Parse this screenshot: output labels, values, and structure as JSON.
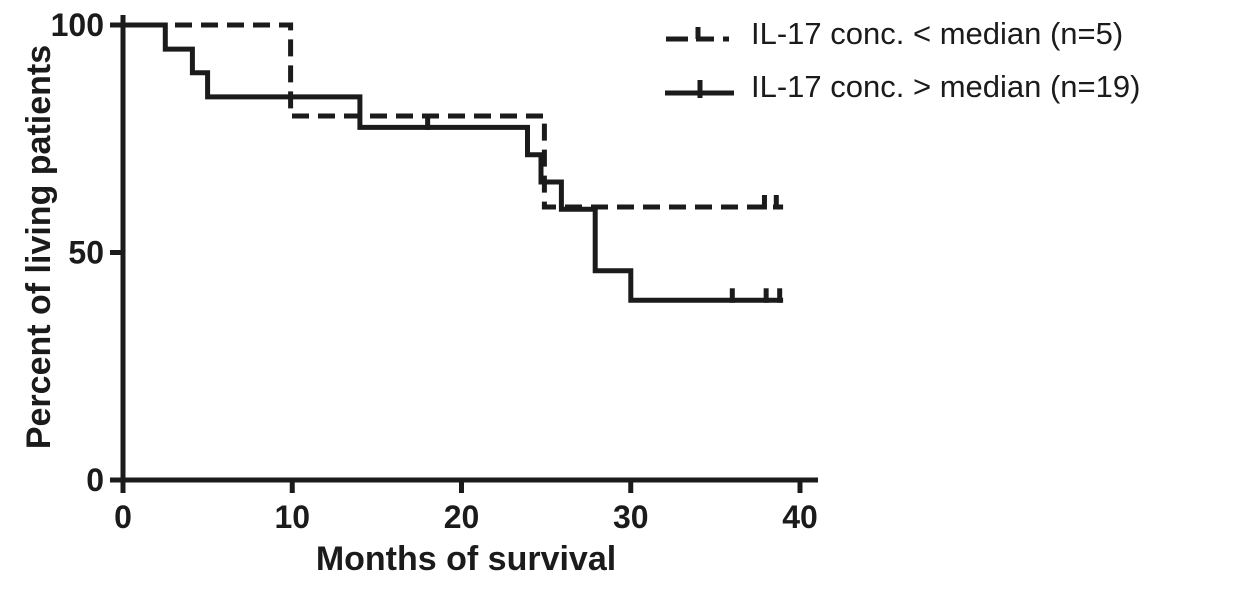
{
  "chart_data": {
    "type": "line",
    "subtype": "kaplan-meier-step",
    "title": "",
    "xlabel": "Months of survival",
    "ylabel": "Percent of living patients",
    "xlim": [
      0,
      40
    ],
    "ylim": [
      0,
      100
    ],
    "x_ticks": [
      0,
      10,
      20,
      30,
      40
    ],
    "y_ticks": [
      0,
      50,
      100
    ],
    "grid": false,
    "legend_position": "top-right",
    "line_color": "#1b1b1b",
    "series": [
      {
        "name": "IL-17 conc. < median (n=5)",
        "style": "dashed",
        "n": 5,
        "steps": [
          [
            0,
            100
          ],
          [
            9.9,
            100
          ],
          [
            9.9,
            80
          ],
          [
            24.9,
            80
          ],
          [
            24.9,
            60
          ],
          [
            39,
            60
          ]
        ],
        "censor_marks": [
          [
            37.9,
            60
          ],
          [
            38.6,
            60
          ]
        ]
      },
      {
        "name": "IL-17 conc. > median (n=19)",
        "style": "solid",
        "n": 19,
        "steps": [
          [
            0,
            100
          ],
          [
            2.5,
            100
          ],
          [
            2.5,
            94.7
          ],
          [
            4.1,
            94.7
          ],
          [
            4.1,
            89.5
          ],
          [
            5,
            89.5
          ],
          [
            5,
            84.2
          ],
          [
            14,
            84.2
          ],
          [
            14,
            77.5
          ],
          [
            23.9,
            77.5
          ],
          [
            23.9,
            71.5
          ],
          [
            24.7,
            71.5
          ],
          [
            24.7,
            65.5
          ],
          [
            25.9,
            65.5
          ],
          [
            25.9,
            59.5
          ],
          [
            27.9,
            59.5
          ],
          [
            27.9,
            46
          ],
          [
            30,
            46
          ],
          [
            30,
            39.5
          ],
          [
            39,
            39.5
          ]
        ],
        "censor_marks": [
          [
            18,
            77.5
          ],
          [
            36,
            39.5
          ],
          [
            38,
            39.5
          ],
          [
            38.8,
            39.5
          ]
        ]
      }
    ]
  }
}
